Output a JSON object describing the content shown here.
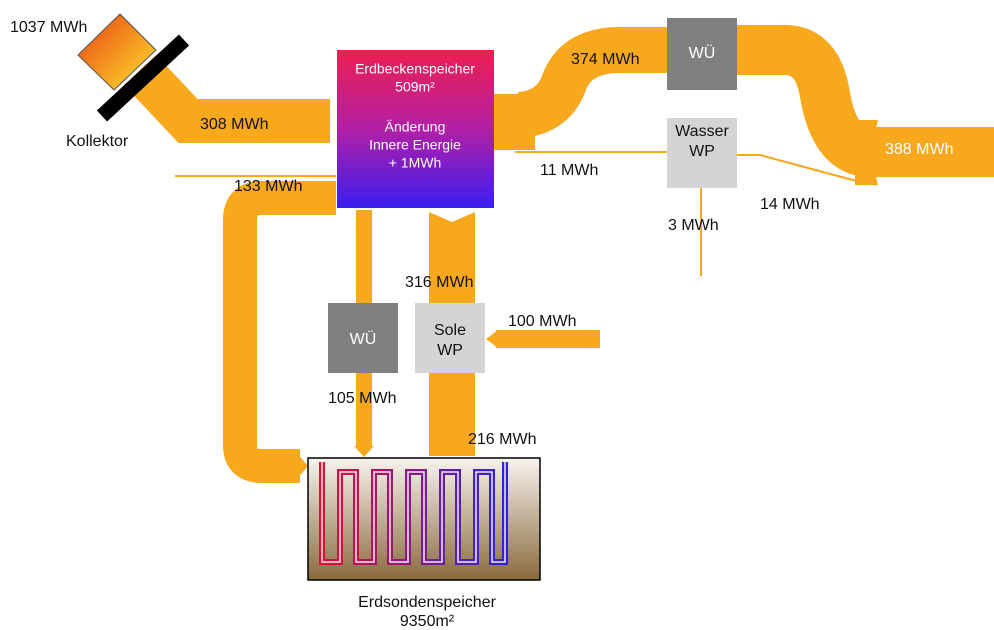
{
  "collector": {
    "output": "1037 MWh",
    "label": "Kollektor"
  },
  "pit_storage": {
    "lines": [
      "Erdbeckenspeicher",
      "509m²",
      "Änderung",
      "Innere Energie",
      "+ 1MWh"
    ]
  },
  "borehole_storage": {
    "lines": [
      "Erdsondenspeicher",
      "9350m²"
    ]
  },
  "units": [
    {
      "lines": [
        "WÜ"
      ]
    },
    {
      "lines": [
        "Wasser",
        "WP"
      ]
    },
    {
      "lines": [
        "WÜ"
      ]
    },
    {
      "lines": [
        "Sole",
        "WP"
      ]
    }
  ],
  "flows": [
    "308 MWh",
    "374 MWh",
    "11 MWh",
    "388 MWh",
    "14 MWh",
    "3 MWh",
    "133 MWh",
    "316 MWh",
    "100 MWh",
    "105 MWh",
    "216 MWh"
  ]
}
